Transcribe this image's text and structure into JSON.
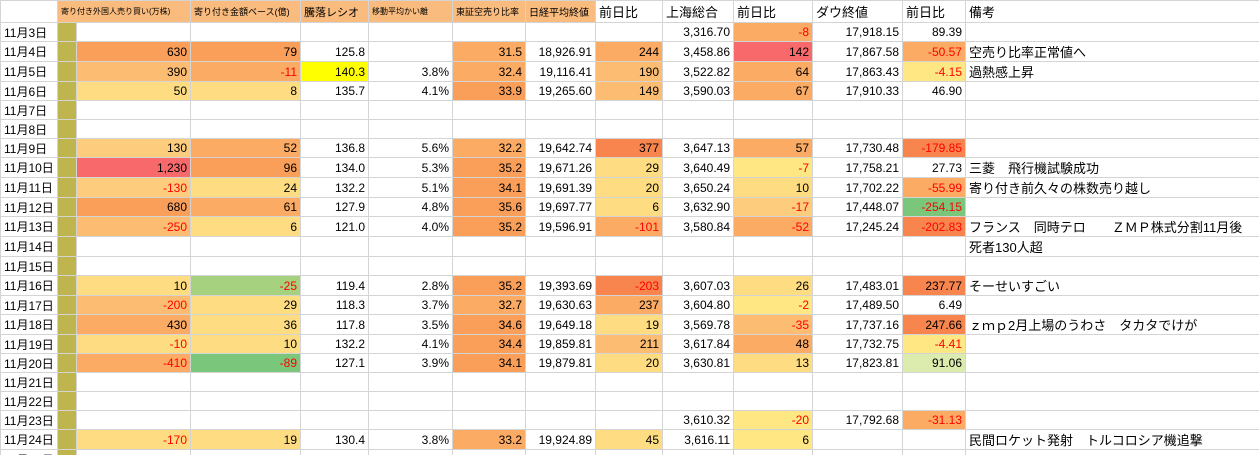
{
  "palette": {
    "header_orange": "#f9bb7e",
    "strip_olive": "#beb54e",
    "grid": "#d4d4d4",
    "negative_text": "#ff0000",
    "r": "#f8696b",
    "o1": "#f8854e",
    "o2": "#fa9f5a",
    "o3": "#fbab63",
    "o4": "#fcbd72",
    "o5": "#fdcc7c",
    "y1": "#fedd82",
    "y2": "#ffe884",
    "yh": "#ffff00",
    "g1": "#dcebae",
    "g2": "#a6d17e",
    "g3": "#7ac77c"
  },
  "columns": [
    "",
    "寄り付き外国人売り買い(万株)",
    "寄り付き金額ベース(億)",
    "騰落レシオ",
    "移動平均かい離",
    "東証空売り比率",
    "日経平均終値",
    "前日比",
    "上海総合",
    "前日比",
    "ダウ終値",
    "前日比",
    "備考"
  ],
  "rows": [
    {
      "date": "11月3日",
      "cells": [
        null,
        null,
        null,
        null,
        null,
        null,
        null,
        {
          "v": "3,316.70"
        },
        {
          "v": "-8",
          "bg": "o3"
        },
        {
          "v": "17,918.15"
        },
        {
          "v": "89.39"
        }
      ],
      "remark": ""
    },
    {
      "date": "11月4日",
      "cells": [
        {
          "v": "630",
          "bg": "o2"
        },
        {
          "v": "79",
          "bg": "o2"
        },
        {
          "v": "125.8"
        },
        null,
        {
          "v": "31.5",
          "bg": "o3"
        },
        {
          "v": "18,926.91"
        },
        {
          "v": "244",
          "bg": "o3"
        },
        {
          "v": "3,458.86"
        },
        {
          "v": "142",
          "bg": "r"
        },
        {
          "v": "17,867.58"
        },
        {
          "v": "-50.57",
          "bg": "o3"
        }
      ],
      "remark": "空売り比率正常値へ"
    },
    {
      "date": "11月5日",
      "cells": [
        {
          "v": "390",
          "bg": "o4"
        },
        {
          "v": "-11",
          "bg": "o3"
        },
        {
          "v": "140.3",
          "bg": "yh"
        },
        {
          "v": "3.8%"
        },
        {
          "v": "32.4",
          "bg": "o3"
        },
        {
          "v": "19,116.41"
        },
        {
          "v": "190",
          "bg": "o4"
        },
        {
          "v": "3,522.82"
        },
        {
          "v": "64",
          "bg": "o3"
        },
        {
          "v": "17,863.43"
        },
        {
          "v": "-4.15",
          "bg": "y2"
        }
      ],
      "remark": "過熱感上昇"
    },
    {
      "date": "11月6日",
      "cells": [
        {
          "v": "50",
          "bg": "y1"
        },
        {
          "v": "8",
          "bg": "y1"
        },
        {
          "v": "135.7"
        },
        {
          "v": "4.1%"
        },
        {
          "v": "33.9",
          "bg": "o2"
        },
        {
          "v": "19,265.60"
        },
        {
          "v": "149",
          "bg": "o4"
        },
        {
          "v": "3,590.03"
        },
        {
          "v": "67",
          "bg": "o3"
        },
        {
          "v": "17,910.33"
        },
        {
          "v": "46.90"
        }
      ],
      "remark": ""
    },
    {
      "date": "11月7日",
      "cells": [
        null,
        null,
        null,
        null,
        null,
        null,
        null,
        null,
        null,
        null,
        null
      ],
      "remark": ""
    },
    {
      "date": "11月8日",
      "cells": [
        null,
        null,
        null,
        null,
        null,
        null,
        null,
        null,
        null,
        null,
        null
      ],
      "remark": ""
    },
    {
      "date": "11月9日",
      "cells": [
        {
          "v": "130",
          "bg": "o5"
        },
        {
          "v": "52",
          "bg": "o3"
        },
        {
          "v": "136.8"
        },
        {
          "v": "5.6%"
        },
        {
          "v": "32.2",
          "bg": "o3"
        },
        {
          "v": "19,642.74"
        },
        {
          "v": "377",
          "bg": "o1"
        },
        {
          "v": "3,647.13"
        },
        {
          "v": "57",
          "bg": "o3"
        },
        {
          "v": "17,730.48"
        },
        {
          "v": "-179.85",
          "bg": "o1"
        }
      ],
      "remark": ""
    },
    {
      "date": "11月10日",
      "cells": [
        {
          "v": "1,230",
          "bg": "r"
        },
        {
          "v": "96",
          "bg": "o2"
        },
        {
          "v": "134.0"
        },
        {
          "v": "5.3%"
        },
        {
          "v": "35.2",
          "bg": "o2"
        },
        {
          "v": "19,671.26"
        },
        {
          "v": "29",
          "bg": "y1"
        },
        {
          "v": "3,640.49"
        },
        {
          "v": "-7",
          "bg": "y2"
        },
        {
          "v": "17,758.21"
        },
        {
          "v": "27.73"
        }
      ],
      "remark": "三菱　飛行機試験成功"
    },
    {
      "date": "11月11日",
      "cells": [
        {
          "v": "-130",
          "bg": "o5"
        },
        {
          "v": "24",
          "bg": "y1"
        },
        {
          "v": "132.2"
        },
        {
          "v": "5.1%"
        },
        {
          "v": "34.1",
          "bg": "o2"
        },
        {
          "v": "19,691.39"
        },
        {
          "v": "20",
          "bg": "y1"
        },
        {
          "v": "3,650.24"
        },
        {
          "v": "10",
          "bg": "y1"
        },
        {
          "v": "17,702.22"
        },
        {
          "v": "-55.99",
          "bg": "o3"
        }
      ],
      "remark": "寄り付き前久々の株数売り越し"
    },
    {
      "date": "11月12日",
      "cells": [
        {
          "v": "680",
          "bg": "o2"
        },
        {
          "v": "61",
          "bg": "o3"
        },
        {
          "v": "127.9"
        },
        {
          "v": "4.8%"
        },
        {
          "v": "35.6",
          "bg": "o2"
        },
        {
          "v": "19,697.77"
        },
        {
          "v": "6",
          "bg": "y1"
        },
        {
          "v": "3,632.90"
        },
        {
          "v": "-17",
          "bg": "o5"
        },
        {
          "v": "17,448.07"
        },
        {
          "v": "-254.15",
          "bg": "g3"
        }
      ],
      "remark": ""
    },
    {
      "date": "11月13日",
      "cells": [
        {
          "v": "-250",
          "bg": "o4"
        },
        {
          "v": "6",
          "bg": "y1"
        },
        {
          "v": "121.0"
        },
        {
          "v": "4.0%"
        },
        {
          "v": "35.2",
          "bg": "o2"
        },
        {
          "v": "19,596.91"
        },
        {
          "v": "-101",
          "bg": "o3"
        },
        {
          "v": "3,580.84"
        },
        {
          "v": "-52",
          "bg": "o3"
        },
        {
          "v": "17,245.24"
        },
        {
          "v": "-202.83",
          "bg": "o1"
        }
      ],
      "remark": "フランス　同時テロ　　ＺＭＰ株式分割11月後"
    },
    {
      "date": "11月14日",
      "cells": [
        null,
        null,
        null,
        null,
        null,
        null,
        null,
        null,
        null,
        null,
        null
      ],
      "remark": "死者130人超"
    },
    {
      "date": "11月15日",
      "cells": [
        null,
        null,
        null,
        null,
        null,
        null,
        null,
        null,
        null,
        null,
        null
      ],
      "remark": ""
    },
    {
      "date": "11月16日",
      "cells": [
        {
          "v": "10",
          "bg": "y1"
        },
        {
          "v": "-25",
          "bg": "g2"
        },
        {
          "v": "119.4"
        },
        {
          "v": "2.8%"
        },
        {
          "v": "35.2",
          "bg": "o2"
        },
        {
          "v": "19,393.69"
        },
        {
          "v": "-203",
          "bg": "o1"
        },
        {
          "v": "3,607.03"
        },
        {
          "v": "26",
          "bg": "y1"
        },
        {
          "v": "17,483.01"
        },
        {
          "v": "237.77",
          "bg": "o1"
        }
      ],
      "remark": "そーせいすごい"
    },
    {
      "date": "11月17日",
      "cells": [
        {
          "v": "-200",
          "bg": "o4"
        },
        {
          "v": "29",
          "bg": "y1"
        },
        {
          "v": "118.3"
        },
        {
          "v": "3.7%"
        },
        {
          "v": "32.7",
          "bg": "o3"
        },
        {
          "v": "19,630.63"
        },
        {
          "v": "237",
          "bg": "o3"
        },
        {
          "v": "3,604.80"
        },
        {
          "v": "-2",
          "bg": "y2"
        },
        {
          "v": "17,489.50"
        },
        {
          "v": "6.49"
        }
      ],
      "remark": ""
    },
    {
      "date": "11月18日",
      "cells": [
        {
          "v": "430",
          "bg": "o3"
        },
        {
          "v": "36",
          "bg": "y1"
        },
        {
          "v": "117.8"
        },
        {
          "v": "3.5%"
        },
        {
          "v": "34.6",
          "bg": "o2"
        },
        {
          "v": "19,649.18"
        },
        {
          "v": "19",
          "bg": "y1"
        },
        {
          "v": "3,569.78"
        },
        {
          "v": "-35",
          "bg": "o4"
        },
        {
          "v": "17,737.16"
        },
        {
          "v": "247.66",
          "bg": "o1"
        }
      ],
      "remark": "ｚｍｐ2月上場のうわさ　タカタでけが"
    },
    {
      "date": "11月19日",
      "cells": [
        {
          "v": "-10",
          "bg": "y1"
        },
        {
          "v": "10",
          "bg": "y1"
        },
        {
          "v": "132.2"
        },
        {
          "v": "4.1%"
        },
        {
          "v": "34.4",
          "bg": "o2"
        },
        {
          "v": "19,859.81"
        },
        {
          "v": "211",
          "bg": "o4"
        },
        {
          "v": "3,617.84"
        },
        {
          "v": "48",
          "bg": "o3"
        },
        {
          "v": "17,732.75"
        },
        {
          "v": "-4.41",
          "bg": "y2"
        }
      ],
      "remark": ""
    },
    {
      "date": "11月20日",
      "cells": [
        {
          "v": "-410",
          "bg": "o3"
        },
        {
          "v": "-89",
          "bg": "g3"
        },
        {
          "v": "127.1"
        },
        {
          "v": "3.9%"
        },
        {
          "v": "34.1",
          "bg": "o2"
        },
        {
          "v": "19,879.81"
        },
        {
          "v": "20",
          "bg": "y1"
        },
        {
          "v": "3,630.81"
        },
        {
          "v": "13",
          "bg": "y1"
        },
        {
          "v": "17,823.81"
        },
        {
          "v": "91.06",
          "bg": "g1"
        }
      ],
      "remark": ""
    },
    {
      "date": "11月21日",
      "cells": [
        null,
        null,
        null,
        null,
        null,
        null,
        null,
        null,
        null,
        null,
        null
      ],
      "remark": ""
    },
    {
      "date": "11月22日",
      "cells": [
        null,
        null,
        null,
        null,
        null,
        null,
        null,
        null,
        null,
        null,
        null
      ],
      "remark": ""
    },
    {
      "date": "11月23日",
      "cells": [
        null,
        null,
        null,
        null,
        null,
        null,
        null,
        {
          "v": "3,610.32"
        },
        {
          "v": "-20",
          "bg": "y2"
        },
        {
          "v": "17,792.68"
        },
        {
          "v": "-31.13",
          "bg": "o3"
        }
      ],
      "remark": ""
    },
    {
      "date": "11月24日",
      "cells": [
        {
          "v": "-170",
          "bg": "y1"
        },
        {
          "v": "19",
          "bg": "y1"
        },
        {
          "v": "130.4"
        },
        {
          "v": "3.8%"
        },
        {
          "v": "33.2",
          "bg": "o3"
        },
        {
          "v": "19,924.89"
        },
        {
          "v": "45",
          "bg": "y1"
        },
        {
          "v": "3,616.11"
        },
        {
          "v": "6",
          "bg": "y2"
        },
        null,
        null
      ],
      "remark": "民間ロケット発射　トルコロシア機追撃"
    },
    {
      "date": "11月25日",
      "cells": [
        null,
        null,
        null,
        null,
        null,
        null,
        null,
        null,
        null,
        null,
        null
      ],
      "remark": ""
    }
  ]
}
